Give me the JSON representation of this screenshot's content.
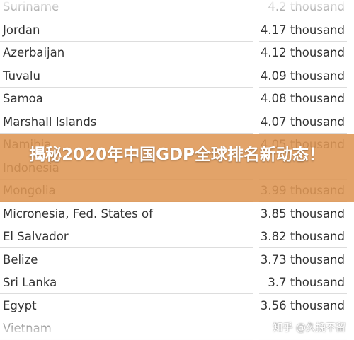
{
  "rows": [
    {
      "name": "Suriname",
      "value": "4.2 thousand"
    },
    {
      "name": "Jordan",
      "value": "4.17 thousand"
    },
    {
      "name": "Azerbaijan",
      "value": "4.12 thousand"
    },
    {
      "name": "Tuvalu",
      "value": "4.09 thousand"
    },
    {
      "name": "Samoa",
      "value": "4.08 thousand"
    },
    {
      "name": "Marshall Islands",
      "value": "4.07 thousand"
    },
    {
      "name": "Namibia",
      "value": "4.05 thousand"
    },
    {
      "name": "Indonesia"
    },
    {
      "name": "Mongolia",
      "value": "3.99 thousand"
    },
    {
      "name": "Micronesia, Fed. States of",
      "value": "3.85 thousand"
    },
    {
      "name": "El Salvador",
      "value": "3.82 thousand"
    },
    {
      "name": "Belize",
      "value": "3.73 thousand"
    },
    {
      "name": "Sri Lanka",
      "value": "3.7 thousand"
    },
    {
      "name": "Egypt",
      "value": "3.56 thousand"
    },
    {
      "name": "Vietnam"
    }
  ],
  "banner": {
    "title": "揭秘2020年中国GDP全球排名新动态！"
  },
  "watermark": "知乎 @久挽不留"
}
